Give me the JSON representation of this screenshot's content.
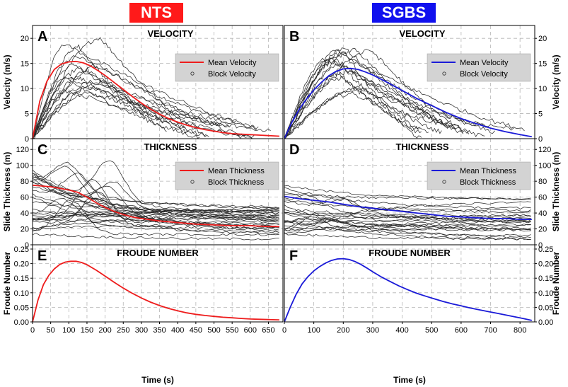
{
  "headers": {
    "left": {
      "label": "NTS",
      "color": "#ff1a1a"
    },
    "right": {
      "label": "SGBS",
      "color": "#1010ee"
    }
  },
  "colors": {
    "nts": "#ee1c1c",
    "sgbs": "#1a1ad8",
    "blocks": "#2a2a2a",
    "grid": "#b5b5b5",
    "legend_bg": "#d3d3d3"
  },
  "chart_data": [
    {
      "panel": "A",
      "type": "line",
      "title": "VELOCITY",
      "ylabel": "Velocity (m/s)",
      "xlim": [
        0,
        690
      ],
      "ylim": [
        0,
        22
      ],
      "yticks": [
        0,
        5,
        10,
        15,
        20
      ],
      "xticks": [
        0,
        50,
        100,
        150,
        200,
        250,
        300,
        350,
        400,
        450,
        500,
        550,
        600,
        650
      ],
      "legend": [
        "Mean Velocity",
        "Block Velocity"
      ],
      "mean_series": {
        "name": "Mean Velocity",
        "x": [
          0,
          20,
          40,
          60,
          80,
          100,
          120,
          140,
          160,
          180,
          200,
          225,
          250,
          275,
          300,
          325,
          350,
          375,
          400,
          425,
          450,
          475,
          500,
          525,
          550,
          575,
          600,
          625,
          650,
          680
        ],
        "y": [
          0,
          7.5,
          11.5,
          13.8,
          14.9,
          15.3,
          15.4,
          15.1,
          14.5,
          13.6,
          12.6,
          11.2,
          9.8,
          8.4,
          7.1,
          5.9,
          4.9,
          4.0,
          3.3,
          2.7,
          2.2,
          1.8,
          1.5,
          1.2,
          1.0,
          0.9,
          0.8,
          0.7,
          0.6,
          0.5
        ]
      },
      "block_series": {
        "name": "Block Velocity",
        "count": 16,
        "peak_range": [
          9,
          20.5
        ],
        "peak_time_range": [
          85,
          200
        ],
        "end_time_range": [
          360,
          680
        ]
      }
    },
    {
      "panel": "B",
      "type": "line",
      "title": "VELOCITY",
      "ylabel": "Velocity (m/s)",
      "xlim": [
        0,
        850
      ],
      "ylim": [
        0,
        22
      ],
      "yticks": [
        0,
        5,
        10,
        15,
        20
      ],
      "xticks": [
        0,
        100,
        200,
        300,
        400,
        500,
        600,
        700,
        800
      ],
      "legend": [
        "Mean Velocity",
        "Block Velocity"
      ],
      "mean_series": {
        "name": "Mean Velocity",
        "x": [
          0,
          25,
          50,
          75,
          100,
          125,
          150,
          175,
          200,
          225,
          250,
          275,
          300,
          350,
          400,
          450,
          500,
          550,
          600,
          650,
          700,
          750,
          800,
          840
        ],
        "y": [
          0,
          3.2,
          5.8,
          7.9,
          9.7,
          11.2,
          12.5,
          13.4,
          13.9,
          14.0,
          13.8,
          13.3,
          12.7,
          11.2,
          9.6,
          8.0,
          6.6,
          5.2,
          4.0,
          3.0,
          2.1,
          1.4,
          0.8,
          0.4
        ]
      },
      "block_series": {
        "name": "Block Velocity",
        "count": 16,
        "peak_range": [
          9,
          18.5
        ],
        "peak_time_range": [
          140,
          330
        ],
        "end_time_range": [
          420,
          840
        ]
      }
    },
    {
      "panel": "C",
      "type": "line",
      "title": "THICKNESS",
      "ylabel": "Slide Thickness (m)",
      "xlim": [
        0,
        690
      ],
      "ylim": [
        0,
        130
      ],
      "yticks": [
        0,
        20,
        40,
        60,
        80,
        100,
        120
      ],
      "xticks": [
        0,
        50,
        100,
        150,
        200,
        250,
        300,
        350,
        400,
        450,
        500,
        550,
        600,
        650
      ],
      "legend": [
        "Mean Thickness",
        "Block Thickness"
      ],
      "mean_series": {
        "name": "Mean Thickness",
        "x": [
          0,
          25,
          50,
          75,
          100,
          125,
          150,
          175,
          200,
          225,
          250,
          275,
          300,
          350,
          400,
          450,
          500,
          550,
          600,
          650,
          680
        ],
        "y": [
          75,
          74,
          73,
          71,
          69,
          66,
          60,
          53,
          47,
          42,
          38,
          35,
          33,
          30,
          28,
          26,
          25,
          24,
          24,
          23,
          23
        ]
      },
      "block_series": {
        "name": "Block Thickness",
        "count": 30,
        "range": [
          6,
          122
        ]
      }
    },
    {
      "panel": "D",
      "type": "line",
      "title": "THICKNESS",
      "ylabel": "Slide Thickness (m)",
      "xlim": [
        0,
        850
      ],
      "ylim": [
        0,
        130
      ],
      "yticks": [
        0,
        20,
        40,
        60,
        80,
        100,
        120
      ],
      "xticks": [
        0,
        100,
        200,
        300,
        400,
        500,
        600,
        700,
        800
      ],
      "legend": [
        "Mean Thickness",
        "Block Thickness"
      ],
      "mean_series": {
        "name": "Mean Thickness",
        "x": [
          0,
          50,
          100,
          150,
          200,
          250,
          300,
          350,
          400,
          450,
          500,
          550,
          600,
          650,
          700,
          750,
          800,
          840
        ],
        "y": [
          61,
          58,
          56,
          54,
          51,
          48,
          46,
          44,
          42,
          40,
          38,
          36,
          35,
          34,
          33,
          33,
          32,
          32
        ]
      },
      "block_series": {
        "name": "Block Thickness",
        "count": 24,
        "range": [
          6,
          88
        ]
      }
    },
    {
      "panel": "E",
      "type": "line",
      "title": "FROUDE NUMBER",
      "ylabel": "Froude Number",
      "xlabel": "Time (s)",
      "xlim": [
        0,
        690
      ],
      "ylim": [
        0,
        0.25
      ],
      "yticks": [
        0,
        0.05,
        0.1,
        0.15,
        0.2,
        0.25
      ],
      "ytick_labels": [
        "0.00",
        "0.05",
        "0.10",
        "0.15",
        "0.20",
        "0.25"
      ],
      "xticks": [
        0,
        50,
        100,
        150,
        200,
        250,
        300,
        350,
        400,
        450,
        500,
        550,
        600,
        650
      ],
      "series": [
        {
          "name": "Froude Number",
          "x": [
            0,
            15,
            30,
            45,
            60,
            75,
            90,
            105,
            120,
            135,
            150,
            175,
            200,
            225,
            250,
            275,
            300,
            325,
            350,
            375,
            400,
            425,
            450,
            475,
            500,
            525,
            550,
            575,
            600,
            625,
            650,
            680
          ],
          "y": [
            0,
            0.075,
            0.128,
            0.16,
            0.182,
            0.197,
            0.205,
            0.208,
            0.208,
            0.204,
            0.196,
            0.178,
            0.157,
            0.136,
            0.116,
            0.098,
            0.082,
            0.068,
            0.056,
            0.046,
            0.038,
            0.031,
            0.026,
            0.022,
            0.019,
            0.016,
            0.014,
            0.012,
            0.01,
            0.009,
            0.008,
            0.007
          ]
        }
      ]
    },
    {
      "panel": "F",
      "type": "line",
      "title": "FROUDE NUMBER",
      "ylabel": "Froude Number",
      "xlabel": "Time (s)",
      "xlim": [
        0,
        850
      ],
      "ylim": [
        0,
        0.25
      ],
      "yticks": [
        0,
        0.05,
        0.1,
        0.15,
        0.2,
        0.25
      ],
      "ytick_labels": [
        "0.00",
        "0.05",
        "0.10",
        "0.15",
        "0.20",
        "0.25"
      ],
      "xticks": [
        0,
        100,
        200,
        300,
        400,
        500,
        600,
        700,
        800
      ],
      "series": [
        {
          "name": "Froude Number",
          "x": [
            0,
            20,
            40,
            60,
            80,
            100,
            120,
            140,
            160,
            180,
            200,
            220,
            240,
            260,
            280,
            300,
            330,
            360,
            390,
            420,
            450,
            480,
            510,
            540,
            570,
            600,
            630,
            660,
            690,
            720,
            750,
            780,
            810,
            840
          ],
          "y": [
            0,
            0.05,
            0.095,
            0.13,
            0.155,
            0.175,
            0.19,
            0.202,
            0.211,
            0.216,
            0.217,
            0.214,
            0.207,
            0.197,
            0.185,
            0.172,
            0.154,
            0.138,
            0.123,
            0.11,
            0.098,
            0.088,
            0.079,
            0.07,
            0.062,
            0.055,
            0.048,
            0.042,
            0.036,
            0.03,
            0.024,
            0.018,
            0.012,
            0.005
          ]
        }
      ]
    }
  ]
}
